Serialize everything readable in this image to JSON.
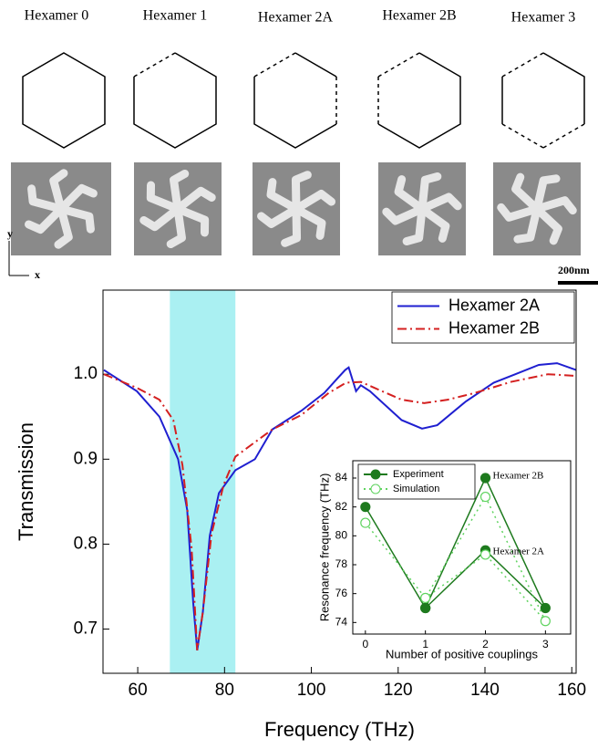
{
  "structures": {
    "labels": [
      "Hexamer 0",
      "Hexamer 1",
      "Hexamer 2A",
      "Hexamer 2B",
      "Hexamer 3"
    ],
    "axis_x": "x",
    "axis_y": "y",
    "scale_bar": "200nm"
  },
  "chart_data": [
    {
      "type": "line",
      "x_label": "Frequency (THz)",
      "y_label": "Transmission",
      "xlim": [
        52,
        161
      ],
      "ylim": [
        0.648,
        1.099
      ],
      "xticks": [
        60,
        80,
        100,
        120,
        140,
        160
      ],
      "yticks": [
        0.7,
        0.8,
        0.9,
        {
          "value": 1,
          "label": "1.0"
        }
      ],
      "highlight_range": [
        67.4,
        82.5
      ],
      "highlight_color": "#aaf0f2",
      "legend": "upper right",
      "series": [
        {
          "name": "Hexamer 2A",
          "color": "#1f1fd0",
          "line_style": "solid",
          "x": [
            52.2,
            59.8,
            65,
            69.3,
            71.4,
            72.8,
            73.7,
            75,
            76.6,
            78.7,
            82.5,
            87,
            91,
            97.7,
            103,
            106,
            107.8,
            108.6,
            110.3,
            111.4,
            113.5,
            120.8,
            125.5,
            129,
            135.6,
            142,
            147,
            152.4,
            156.6,
            161
          ],
          "values": [
            1.005,
            0.98,
            0.95,
            0.9,
            0.84,
            0.73,
            0.675,
            0.72,
            0.81,
            0.86,
            0.887,
            0.9,
            0.935,
            0.957,
            0.978,
            0.995,
            1.005,
            1.008,
            0.98,
            0.987,
            0.98,
            0.946,
            0.936,
            0.94,
            0.968,
            0.99,
            1.0,
            1.011,
            1.013,
            1.005
          ]
        },
        {
          "name": "Hexamer 2B",
          "color": "#d42020",
          "line_style": "dashdot",
          "x": [
            52.2,
            59.8,
            65,
            68.2,
            70.3,
            72.4,
            73.7,
            75,
            77,
            79.8,
            82.5,
            87,
            91,
            97.7,
            104,
            108,
            111.4,
            114.5,
            120.8,
            126,
            131.4,
            137.7,
            146,
            154.5,
            161
          ],
          "values": [
            1.0,
            0.984,
            0.97,
            0.946,
            0.893,
            0.796,
            0.675,
            0.72,
            0.812,
            0.87,
            0.903,
            0.92,
            0.935,
            0.952,
            0.978,
            0.99,
            0.991,
            0.984,
            0.97,
            0.966,
            0.97,
            0.978,
            0.991,
            1.0,
            0.998
          ]
        }
      ]
    },
    {
      "type": "line",
      "x_label": "Number of positive couplings",
      "y_label": "Resonance frequency (THz)",
      "xlim": [
        -0.21,
        3.42
      ],
      "ylim": [
        73.2,
        85.2
      ],
      "xticks": [
        0,
        1,
        2,
        3
      ],
      "yticks": [
        74,
        76,
        78,
        80,
        82,
        84
      ],
      "legend": "upper left",
      "annotations": [
        {
          "text": "Hexamer 2B",
          "x": 2,
          "y": 84
        },
        {
          "text": "Hexamer 2A",
          "x": 2,
          "y": 79
        }
      ],
      "series": [
        {
          "name": "Experiment",
          "color": "#1e7a1e",
          "line_style": "solid",
          "marker": "filled",
          "x": [
            0,
            1,
            2,
            3,
            2,
            1
          ],
          "values": [
            82,
            75,
            84,
            75,
            79,
            75
          ]
        },
        {
          "name": "Simulation",
          "color": "#5fd35f",
          "line_style": "dotted",
          "marker": "open",
          "x": [
            0,
            1,
            2,
            3,
            2,
            1
          ],
          "values": [
            80.9,
            75.7,
            82.7,
            74.1,
            78.7,
            75.7
          ]
        }
      ]
    }
  ]
}
